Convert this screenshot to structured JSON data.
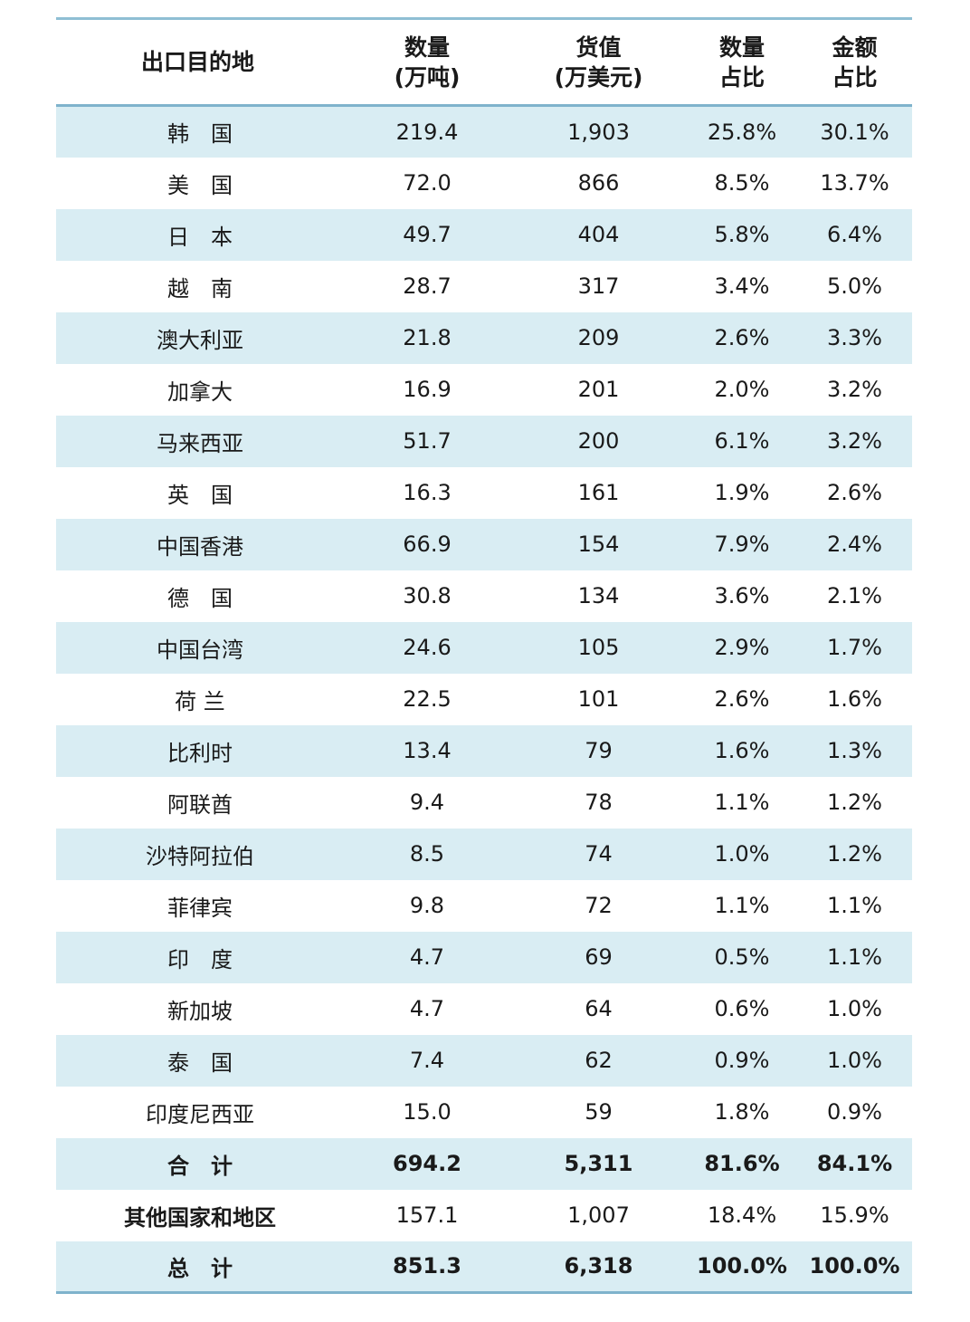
{
  "header": {
    "destination": "出口目的地",
    "quantity": [
      "数量",
      "(万吨)"
    ],
    "value": [
      "货值",
      "(万美元)"
    ],
    "quantity_share": [
      "数量",
      "占比"
    ],
    "amount_share": [
      "金额",
      "占比"
    ]
  },
  "rows": [
    {
      "name": "韩　国",
      "quantity": "219.4",
      "value": "1,903",
      "quantity_share": "25.8%",
      "amount_share": "30.1%"
    },
    {
      "name": "美　国",
      "quantity": "72.0",
      "value": "866",
      "quantity_share": "8.5%",
      "amount_share": "13.7%"
    },
    {
      "name": "日　本",
      "quantity": "49.7",
      "value": "404",
      "quantity_share": "5.8%",
      "amount_share": "6.4%"
    },
    {
      "name": "越　南",
      "quantity": "28.7",
      "value": "317",
      "quantity_share": "3.4%",
      "amount_share": "5.0%"
    },
    {
      "name": "澳大利亚",
      "quantity": "21.8",
      "value": "209",
      "quantity_share": "2.6%",
      "amount_share": "3.3%"
    },
    {
      "name": "加拿大",
      "quantity": "16.9",
      "value": "201",
      "quantity_share": "2.0%",
      "amount_share": "3.2%"
    },
    {
      "name": "马来西亚",
      "quantity": "51.7",
      "value": "200",
      "quantity_share": "6.1%",
      "amount_share": "3.2%"
    },
    {
      "name": "英　国",
      "quantity": "16.3",
      "value": "161",
      "quantity_share": "1.9%",
      "amount_share": "2.6%"
    },
    {
      "name": "中国香港",
      "quantity": "66.9",
      "value": "154",
      "quantity_share": "7.9%",
      "amount_share": "2.4%"
    },
    {
      "name": "德　国",
      "quantity": "30.8",
      "value": "134",
      "quantity_share": "3.6%",
      "amount_share": "2.1%"
    },
    {
      "name": "中国台湾",
      "quantity": "24.6",
      "value": "105",
      "quantity_share": "2.9%",
      "amount_share": "1.7%"
    },
    {
      "name": "荷 兰",
      "quantity": "22.5",
      "value": "101",
      "quantity_share": "2.6%",
      "amount_share": "1.6%"
    },
    {
      "name": "比利时",
      "quantity": "13.4",
      "value": "79",
      "quantity_share": "1.6%",
      "amount_share": "1.3%"
    },
    {
      "name": "阿联酋",
      "quantity": "9.4",
      "value": "78",
      "quantity_share": "1.1%",
      "amount_share": "1.2%"
    },
    {
      "name": "沙特阿拉伯",
      "quantity": "8.5",
      "value": "74",
      "quantity_share": "1.0%",
      "amount_share": "1.2%"
    },
    {
      "name": "菲律宾",
      "quantity": "9.8",
      "value": "72",
      "quantity_share": "1.1%",
      "amount_share": "1.1%"
    },
    {
      "name": "印　度",
      "quantity": "4.7",
      "value": "69",
      "quantity_share": "0.5%",
      "amount_share": "1.1%"
    },
    {
      "name": "新加坡",
      "quantity": "4.7",
      "value": "64",
      "quantity_share": "0.6%",
      "amount_share": "1.0%"
    },
    {
      "name": "泰　国",
      "quantity": "7.4",
      "value": "62",
      "quantity_share": "0.9%",
      "amount_share": "1.0%"
    },
    {
      "name": "印度尼西亚",
      "quantity": "15.0",
      "value": "59",
      "quantity_share": "1.8%",
      "amount_share": "0.9%"
    },
    {
      "name": "合　计",
      "quantity": "694.2",
      "value": "5,311",
      "quantity_share": "81.6%",
      "amount_share": "84.1%",
      "bold": true
    },
    {
      "name": "其他国家和地区",
      "quantity": "157.1",
      "value": "1,007",
      "quantity_share": "18.4%",
      "amount_share": "15.9%",
      "bold_name": true
    },
    {
      "name": "总　计",
      "quantity": "851.3",
      "value": "6,318",
      "quantity_share": "100.0%",
      "amount_share": "100.0%",
      "bold": true
    }
  ]
}
